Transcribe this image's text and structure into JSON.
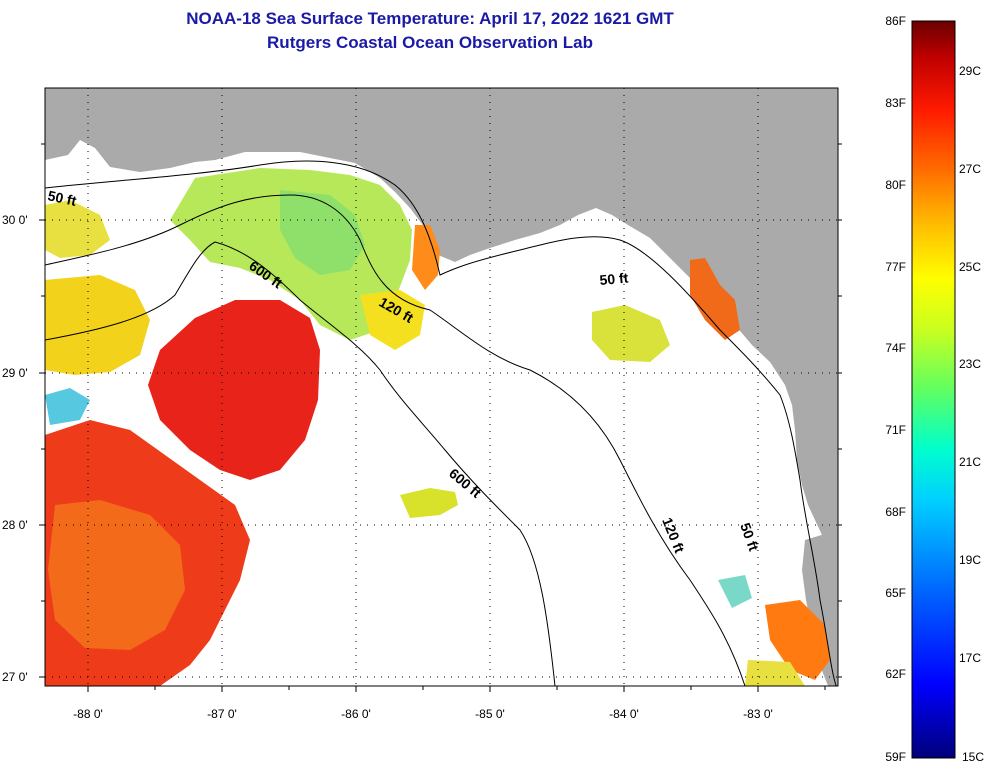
{
  "title": "NOAA-18 Sea Surface Temperature:  April 17, 2022 1621 GMT",
  "subtitle": "Rutgers Coastal Ocean Observation Lab",
  "map": {
    "lat_labels": [
      "30 0'",
      "29 0'",
      "28 0'",
      "27 0'"
    ],
    "lon_labels": [
      "-88 0'",
      "-87 0'",
      "-86 0'",
      "-85 0'",
      "-84 0'",
      "-83 0'"
    ],
    "contours": [
      {
        "label": "50 ft"
      },
      {
        "label": "600 ft"
      },
      {
        "label": "120 ft"
      },
      {
        "label": "50 ft"
      },
      {
        "label": "600 ft"
      },
      {
        "label": "120 ft"
      },
      {
        "label": "50 ft"
      }
    ]
  },
  "colorbar": {
    "f_labels": [
      "86F",
      "83F",
      "80F",
      "77F",
      "74F",
      "71F",
      "68F",
      "65F",
      "62F",
      "59F"
    ],
    "c_labels": [
      "29C",
      "27C",
      "25C",
      "23C",
      "21C",
      "19C",
      "17C",
      "15C"
    ],
    "colors": [
      "#7a0000",
      "#c00000",
      "#ff1a00",
      "#ff6a00",
      "#ffa500",
      "#ffd800",
      "#ffff00",
      "#c8ff30",
      "#60ff90",
      "#00ffff",
      "#00b0ff",
      "#0060ff",
      "#0010ff",
      "#0000a0"
    ]
  },
  "colors": {
    "land": "#aaaaaa",
    "no_data": "#ffffff",
    "title": "#1a1aa6"
  }
}
